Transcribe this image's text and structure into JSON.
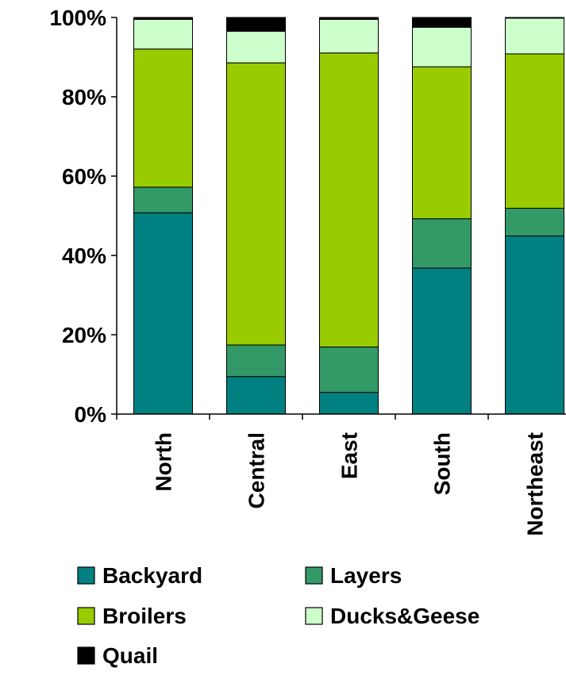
{
  "chart_data": {
    "type": "bar",
    "stacked": true,
    "percent": true,
    "title": "",
    "xlabel": "",
    "ylabel": "",
    "ylim": [
      0,
      100
    ],
    "yticks": [
      "0%",
      "20%",
      "40%",
      "60%",
      "80%",
      "100%"
    ],
    "categories": [
      "North",
      "Central",
      "East",
      "South",
      "Northeast"
    ],
    "series": [
      {
        "name": "Backyard",
        "color": "#008080",
        "values": [
          51,
          9.5,
          5.5,
          37,
          45
        ]
      },
      {
        "name": "Layers",
        "color": "#339966",
        "values": [
          6.5,
          8,
          11.5,
          12.5,
          7
        ]
      },
      {
        "name": "Broilers",
        "color": "#99CC00",
        "values": [
          35,
          71.5,
          74.5,
          38.5,
          39
        ]
      },
      {
        "name": "Ducks&Geese",
        "color": "#CCFFCC",
        "values": [
          7.5,
          8,
          8.5,
          10,
          9
        ]
      },
      {
        "name": "Quail",
        "color": "#000000",
        "values": [
          0.5,
          3.5,
          0.5,
          2.5,
          0.2
        ]
      }
    ],
    "grid": false,
    "legend_position": "bottom"
  }
}
